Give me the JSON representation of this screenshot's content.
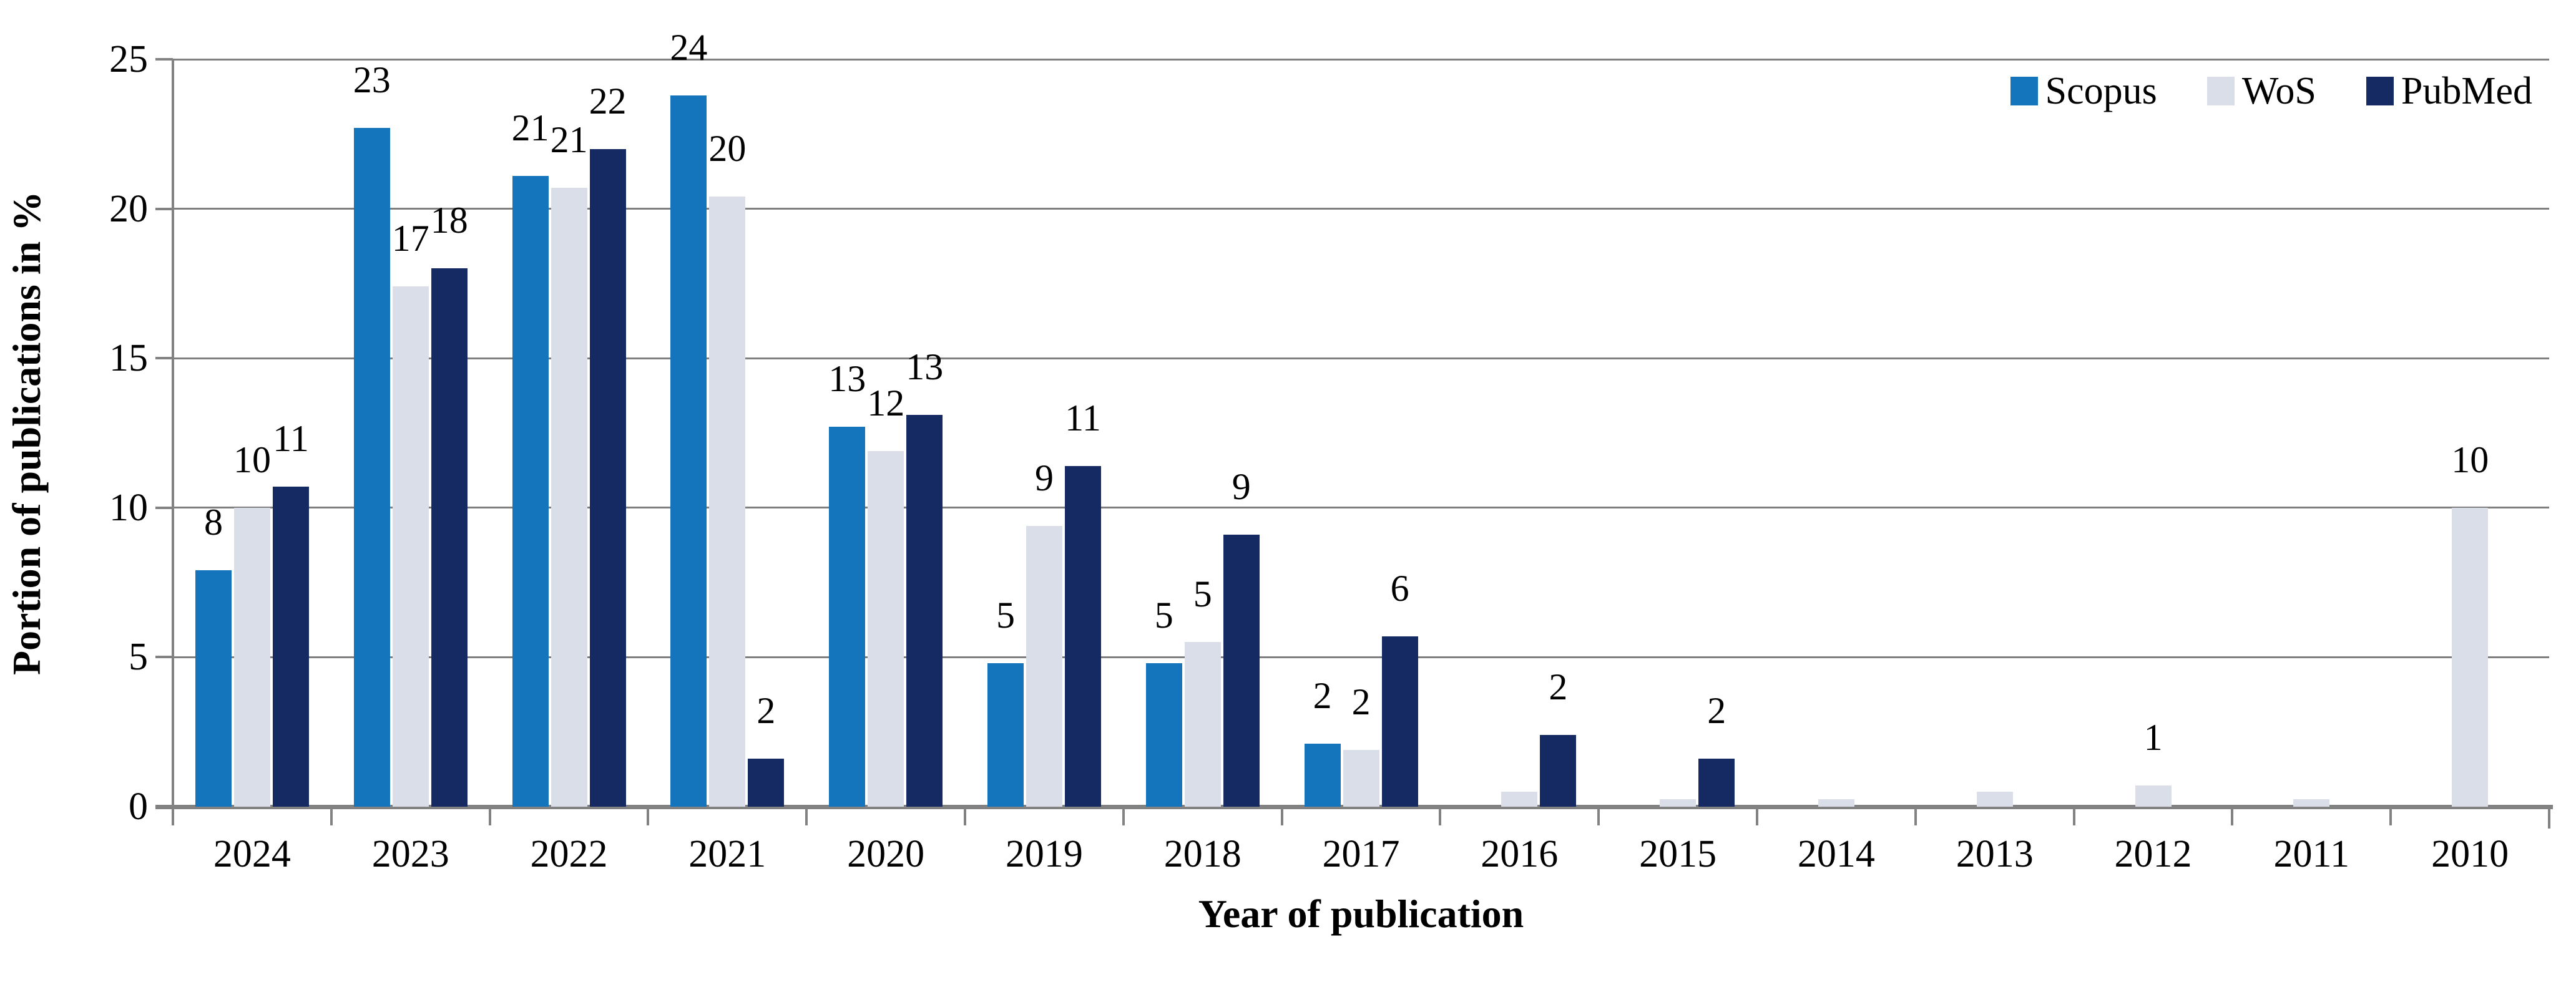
{
  "chart_data": {
    "type": "bar",
    "title": "",
    "xlabel": "Year of publication",
    "ylabel": "Portion of publications in %",
    "categories": [
      "2024",
      "2023",
      "2022",
      "2021",
      "2020",
      "2019",
      "2018",
      "2017",
      "2016",
      "2015",
      "2014",
      "2013",
      "2012",
      "2011",
      "2010"
    ],
    "ylim": [
      0,
      25
    ],
    "yticks": [
      0,
      5,
      10,
      15,
      20,
      25
    ],
    "grid": true,
    "legend_position": "top-right",
    "series": [
      {
        "name": "Scopus",
        "color": "#1475BC",
        "values": [
          7.9,
          22.7,
          21.1,
          23.8,
          12.7,
          4.8,
          4.8,
          2.1,
          0,
          0,
          0,
          0,
          0,
          0,
          0
        ],
        "labels": [
          "8",
          "23",
          "21",
          "24",
          "13",
          "5",
          "5",
          "2",
          "",
          "",
          "",
          "",
          "",
          "",
          ""
        ]
      },
      {
        "name": "WoS",
        "color": "#D9DEE9",
        "values": [
          10,
          17.4,
          20.7,
          20.4,
          11.9,
          9.4,
          5.5,
          1.9,
          0.5,
          0.25,
          0.25,
          0.5,
          0.7,
          0.25,
          10
        ],
        "labels": [
          "10",
          "17",
          "21",
          "20",
          "12",
          "9",
          "5",
          "2",
          "",
          "",
          "",
          "",
          "1",
          "",
          "10"
        ]
      },
      {
        "name": "PubMed",
        "color": "#152A63",
        "values": [
          10.7,
          18,
          22,
          1.6,
          13.1,
          11.4,
          9.1,
          5.7,
          2.4,
          1.6,
          0,
          0,
          0,
          0,
          0
        ],
        "labels": [
          "11",
          "18",
          "22",
          "2",
          "13",
          "11",
          "9",
          "6",
          "2",
          "2",
          "",
          "",
          "",
          "",
          ""
        ]
      }
    ],
    "axis_color": "#828282",
    "grid_color": "#7F7F7F",
    "text_color": "#000000"
  }
}
